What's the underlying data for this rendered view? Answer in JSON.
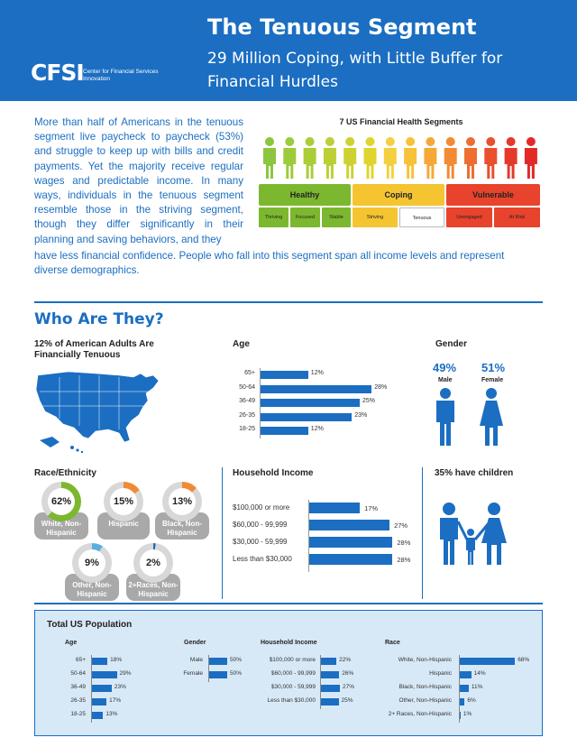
{
  "header": {
    "title": "The Tenuous Segment",
    "subtitle": "29 Million Coping, with Little Buffer for Financial Hurdles",
    "logo_mark": "CFSI",
    "logo_sub": "Center for Financial Services Innovation"
  },
  "intro": {
    "text_column": "More than half of Americans in the tenuous segment live paycheck to paycheck (53%) and struggle to keep up with bills and credit payments. Yet the majority receive regular wages and predictable income. In many ways, individuals in the tenuous segment resemble those in the striving segment, though they differ significantly in their planning and saving behaviors, and they",
    "text_tail": "have less financial confidence. People who fall into this segment span all income levels and represent diverse demographics."
  },
  "segments": {
    "title": "7 US Financial Health Segments",
    "groups": [
      {
        "label": "Healthy",
        "color": "#7cb82f"
      },
      {
        "label": "Coping",
        "color": "#f4c531"
      },
      {
        "label": "Vulnerable",
        "color": "#e8432c"
      }
    ],
    "names": [
      "Thriving",
      "Focused",
      "Stable",
      "Striving",
      "Tenuous",
      "Unengaged",
      "At Risk"
    ],
    "person_colors": [
      "#8cc63f",
      "#9ccb3b",
      "#aacd38",
      "#bcd035",
      "#cdd232",
      "#dfd52e",
      "#f4d03f",
      "#f7c23a",
      "#f6a837",
      "#f28b33",
      "#ee6e30",
      "#e9502d",
      "#e5392a",
      "#e22928"
    ]
  },
  "who": {
    "heading": "Who Are They?",
    "adults_heading": "12% of American Adults Are Financially Tenuous",
    "age": {
      "heading": "Age",
      "rows": [
        {
          "label": "65+",
          "value": 12,
          "text": "12%"
        },
        {
          "label": "50-64",
          "value": 28,
          "text": "28%"
        },
        {
          "label": "36-49",
          "value": 25,
          "text": "25%"
        },
        {
          "label": "26-35",
          "value": 23,
          "text": "23%"
        },
        {
          "label": "18-25",
          "value": 12,
          "text": "12%"
        }
      ]
    },
    "gender": {
      "heading": "Gender",
      "male_pct": "49%",
      "male_label": "Male",
      "female_pct": "51%",
      "female_label": "Female"
    },
    "race": {
      "heading": "Race/Ethnicity",
      "items": [
        {
          "pct": "62%",
          "label": "White, Non-Hispanic",
          "value": 62,
          "color": "#7cb82f"
        },
        {
          "pct": "15%",
          "label": "Hispanic",
          "value": 15,
          "color": "#f08a33"
        },
        {
          "pct": "13%",
          "label": "Black, Non-Hispanic",
          "value": 13,
          "color": "#f08a33"
        },
        {
          "pct": "9%",
          "label": "Other, Non-Hispanic",
          "value": 9,
          "color": "#5aaee0"
        },
        {
          "pct": "2%",
          "label": "2+Races, Non-Hispanic",
          "value": 2,
          "color": "#1b6ec2"
        }
      ]
    },
    "income": {
      "heading": "Household Income",
      "rows": [
        {
          "label": "$100,000 or more",
          "value": 17,
          "text": "17%"
        },
        {
          "label": "$60,000 - 99,999",
          "value": 27,
          "text": "27%"
        },
        {
          "label": "$30,000 - 59,999",
          "value": 28,
          "text": "28%"
        },
        {
          "label": "Less than $30,000",
          "value": 28,
          "text": "28%"
        }
      ]
    },
    "children": {
      "heading": "35% have children"
    }
  },
  "total": {
    "heading": "Total US Population",
    "age": {
      "heading": "Age",
      "rows": [
        {
          "label": "65+",
          "value": 18,
          "text": "18%"
        },
        {
          "label": "50-64",
          "value": 29,
          "text": "29%"
        },
        {
          "label": "36-49",
          "value": 23,
          "text": "23%"
        },
        {
          "label": "26-35",
          "value": 17,
          "text": "17%"
        },
        {
          "label": "18-25",
          "value": 13,
          "text": "13%"
        }
      ]
    },
    "gender": {
      "heading": "Gender",
      "rows": [
        {
          "label": "Male",
          "value": 50,
          "text": "50%"
        },
        {
          "label": "Female",
          "value": 50,
          "text": "50%"
        }
      ]
    },
    "income": {
      "heading": "Household Income",
      "rows": [
        {
          "label": "$100,000 or more",
          "value": 22,
          "text": "22%"
        },
        {
          "label": "$60,000 - 99,999",
          "value": 26,
          "text": "26%"
        },
        {
          "label": "$30,000 - 59,999",
          "value": 27,
          "text": "27%"
        },
        {
          "label": "Less than $30,000",
          "value": 25,
          "text": "25%"
        }
      ]
    },
    "race": {
      "heading": "Race",
      "rows": [
        {
          "label": "White, Non-Hispanic",
          "value": 68,
          "text": "68%"
        },
        {
          "label": "Hispanic",
          "value": 14,
          "text": "14%"
        },
        {
          "label": "Black, Non-Hispanic",
          "value": 11,
          "text": "11%"
        },
        {
          "label": "Other, Non-Hispanic",
          "value": 6,
          "text": "6%"
        },
        {
          "label": "2+ Races, Non-Hispanic",
          "value": 1,
          "text": "1%"
        }
      ]
    }
  }
}
